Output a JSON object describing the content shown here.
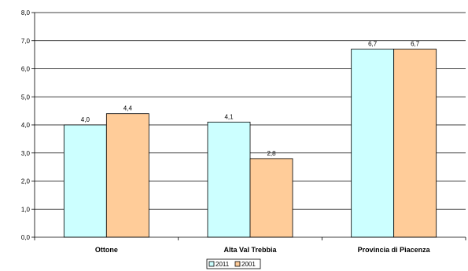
{
  "chart_data": {
    "type": "bar",
    "title": "",
    "xlabel": "",
    "ylabel": "",
    "categories": [
      "Ottone",
      "Alta Val Trebbia",
      "Provincia di Piacenza"
    ],
    "series": [
      {
        "name": "2011",
        "values": [
          4.0,
          4.1,
          6.7
        ],
        "labels": [
          "4,0",
          "4,1",
          "6,7"
        ],
        "color": "#ccffff"
      },
      {
        "name": "2001",
        "values": [
          4.4,
          2.8,
          6.7
        ],
        "labels": [
          "4,4",
          "2,8",
          "6,7"
        ],
        "color": "#ffcc99"
      }
    ],
    "ylim": [
      0,
      8
    ],
    "yticks": [
      0,
      1,
      2,
      3,
      4,
      5,
      6,
      7,
      8
    ],
    "ytick_labels": [
      "0,0",
      "1,0",
      "2,0",
      "3,0",
      "4,0",
      "5,0",
      "6,0",
      "7,0",
      "8,0"
    ],
    "grid": true,
    "legend_position": "bottom"
  }
}
